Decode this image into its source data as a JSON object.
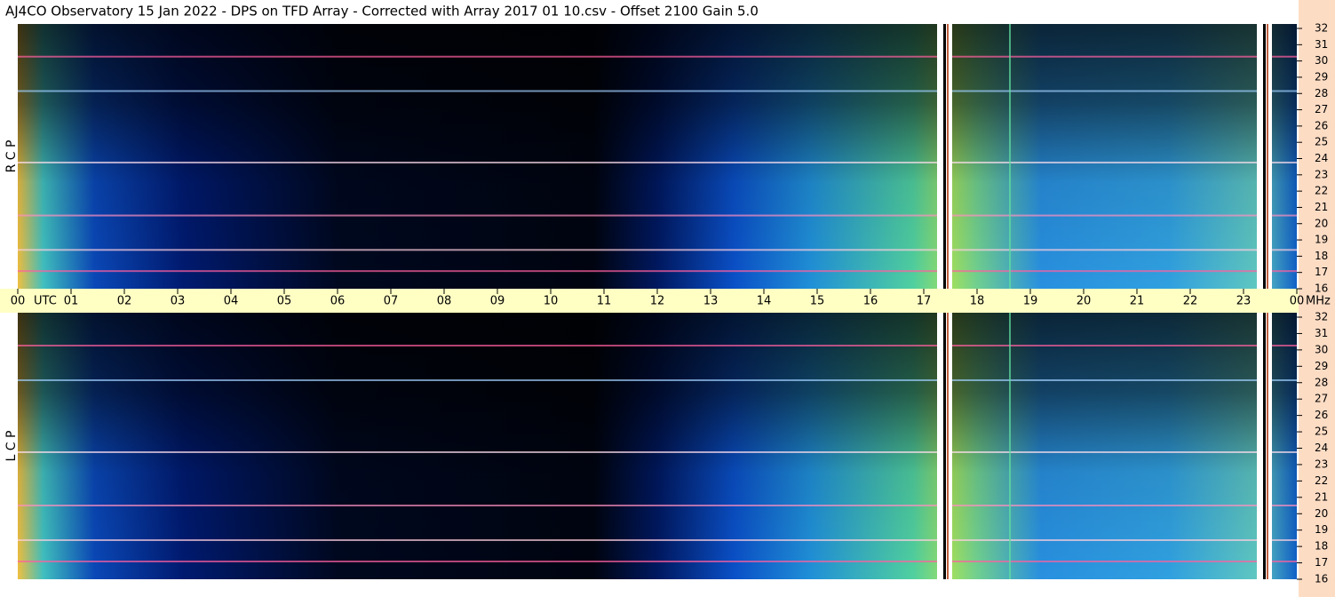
{
  "chart_data": {
    "type": "spectrogram",
    "title": "AJ4CO Observatory  15 Jan 2022  -  DPS on TFD Array  -  Corrected with Array 2017 01 10.csv  -  Offset 2100  Gain 5.0",
    "x_label": "UTC",
    "y_label": "MHz",
    "panels": [
      "R C P",
      "L C P"
    ],
    "xlim": [
      0,
      24
    ],
    "xticks": [
      {
        "value": 0,
        "label": "00"
      },
      {
        "value": 1,
        "label": "01"
      },
      {
        "value": 2,
        "label": "02"
      },
      {
        "value": 3,
        "label": "03"
      },
      {
        "value": 4,
        "label": "04"
      },
      {
        "value": 5,
        "label": "05"
      },
      {
        "value": 6,
        "label": "06"
      },
      {
        "value": 7,
        "label": "07"
      },
      {
        "value": 8,
        "label": "08"
      },
      {
        "value": 9,
        "label": "09"
      },
      10,
      11,
      12,
      13,
      14,
      15,
      16,
      17,
      18,
      19,
      20,
      21,
      22,
      23,
      {
        "value": 24,
        "label": "00"
      }
    ],
    "ylim": [
      16,
      32
    ],
    "yticks": [
      16,
      17,
      18,
      19,
      20,
      21,
      22,
      23,
      24,
      25,
      26,
      27,
      28,
      29,
      30,
      31,
      32
    ]
  }
}
